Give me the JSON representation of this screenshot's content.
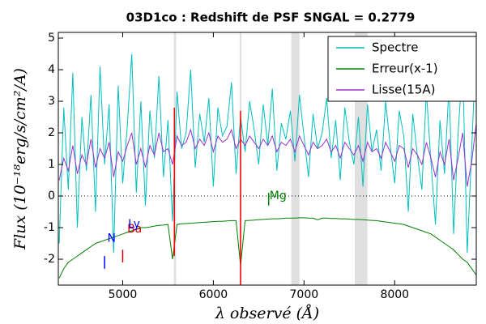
{
  "chart_data": {
    "type": "line",
    "title": "03D1co : Redshift de PSF SNGAL = 0.2779",
    "x_label": "λ observé (Å)",
    "y_label": "Flux (10⁻¹⁸erg/s/cm²/A)",
    "xlim": [
      4290,
      8900
    ],
    "ylim": [
      -2.82,
      5.18
    ],
    "xticks": [
      5000,
      6000,
      7000,
      8000
    ],
    "yticks": [
      -2,
      -1,
      0,
      1,
      2,
      3,
      4,
      5
    ],
    "legend": "upper right",
    "zero_line": true,
    "shaded_regions": [
      [
        5565,
        5590
      ],
      [
        6290,
        6310
      ],
      [
        6860,
        6950
      ],
      [
        7560,
        7700
      ]
    ],
    "x": [
      4300,
      4350,
      4400,
      4450,
      4500,
      4550,
      4600,
      4650,
      4700,
      4750,
      4800,
      4850,
      4900,
      4950,
      5000,
      5050,
      5100,
      5150,
      5200,
      5250,
      5300,
      5350,
      5400,
      5450,
      5500,
      5550,
      5600,
      5650,
      5700,
      5750,
      5800,
      5850,
      5900,
      5950,
      6000,
      6050,
      6100,
      6150,
      6200,
      6250,
      6300,
      6350,
      6400,
      6450,
      6500,
      6550,
      6600,
      6650,
      6700,
      6750,
      6800,
      6850,
      6900,
      6950,
      7000,
      7050,
      7100,
      7150,
      7200,
      7250,
      7300,
      7350,
      7400,
      7450,
      7500,
      7550,
      7600,
      7650,
      7700,
      7750,
      7800,
      7850,
      7900,
      7950,
      8000,
      8050,
      8100,
      8150,
      8200,
      8250,
      8300,
      8350,
      8400,
      8450,
      8500,
      8550,
      8600,
      8650,
      8700,
      8750,
      8800,
      8850,
      8900
    ],
    "series": [
      {
        "name": "Spectre",
        "color": "#00bfbf",
        "values": [
          -1.5,
          2.8,
          0.2,
          3.9,
          -1.0,
          2.5,
          0.8,
          3.2,
          -0.5,
          4.1,
          1.0,
          2.9,
          -1.8,
          3.5,
          0.4,
          2.2,
          4.5,
          0.1,
          3.0,
          -0.3,
          2.7,
          1.2,
          3.8,
          0.6,
          2.4,
          -0.8,
          3.3,
          1.5,
          2.0,
          4.0,
          0.9,
          2.6,
          1.7,
          3.1,
          0.3,
          2.8,
          1.9,
          2.2,
          3.6,
          0.7,
          2.5,
          1.4,
          3.0,
          2.1,
          1.0,
          2.9,
          1.6,
          3.4,
          0.8,
          2.3,
          1.8,
          2.7,
          1.1,
          3.2,
          1.9,
          0.6,
          2.6,
          1.5,
          2.0,
          3.1,
          1.2,
          2.4,
          0.5,
          2.8,
          1.7,
          1.0,
          2.5,
          0.3,
          2.9,
          1.4,
          2.1,
          0.8,
          3.0,
          1.6,
          0.4,
          2.7,
          1.9,
          -0.5,
          2.6,
          1.3,
          0.2,
          3.3,
          1.1,
          -0.9,
          2.4,
          0.7,
          3.5,
          -1.2,
          2.0,
          4.2,
          -1.8,
          1.5,
          5.0
        ]
      },
      {
        "name": "Erreur(x-1)",
        "color": "#008000",
        "values": [
          -2.6,
          -2.3,
          -2.1,
          -2.0,
          -1.9,
          -1.8,
          -1.7,
          -1.6,
          -1.5,
          -1.45,
          -1.4,
          -1.35,
          -1.3,
          -1.25,
          -1.2,
          -1.15,
          -1.1,
          -1.05,
          -1.0,
          -1.0,
          -0.98,
          -0.95,
          -0.93,
          -0.92,
          -0.9,
          -2.0,
          -0.9,
          -0.88,
          -0.87,
          -0.86,
          -0.85,
          -0.84,
          -0.83,
          -0.82,
          -0.81,
          -0.8,
          -0.8,
          -0.79,
          -0.78,
          -0.78,
          -2.2,
          -0.78,
          -0.77,
          -0.76,
          -0.75,
          -0.74,
          -0.73,
          -0.72,
          -0.72,
          -0.71,
          -0.7,
          -0.7,
          -0.7,
          -0.69,
          -0.69,
          -0.7,
          -0.7,
          -0.75,
          -0.7,
          -0.7,
          -0.71,
          -0.71,
          -0.72,
          -0.72,
          -0.73,
          -0.74,
          -0.74,
          -0.75,
          -0.76,
          -0.77,
          -0.78,
          -0.8,
          -0.82,
          -0.84,
          -0.86,
          -0.88,
          -0.9,
          -0.95,
          -1.0,
          -1.05,
          -1.1,
          -1.15,
          -1.2,
          -1.3,
          -1.4,
          -1.5,
          -1.6,
          -1.7,
          -1.85,
          -2.0,
          -2.1,
          -2.3,
          -2.5
        ]
      },
      {
        "name": "Lisse(15A)",
        "color": "#9932cc",
        "values": [
          0.5,
          1.2,
          0.8,
          1.6,
          0.7,
          1.3,
          1.0,
          1.8,
          0.9,
          1.5,
          1.2,
          1.7,
          0.6,
          1.4,
          1.1,
          1.6,
          2.0,
          1.0,
          1.5,
          0.9,
          1.6,
          1.3,
          2.0,
          1.4,
          1.5,
          1.0,
          1.9,
          1.6,
          1.7,
          2.1,
          1.5,
          1.8,
          1.6,
          2.0,
          1.4,
          1.9,
          1.7,
          1.8,
          2.1,
          1.5,
          1.8,
          1.6,
          1.9,
          1.7,
          1.5,
          1.8,
          1.6,
          1.9,
          1.4,
          1.7,
          1.6,
          1.8,
          1.4,
          1.9,
          1.6,
          1.3,
          1.7,
          1.5,
          1.6,
          1.8,
          1.4,
          1.6,
          1.2,
          1.7,
          1.5,
          1.3,
          1.6,
          1.1,
          1.7,
          1.4,
          1.5,
          1.2,
          1.7,
          1.4,
          1.1,
          1.6,
          1.5,
          0.9,
          1.5,
          1.3,
          1.0,
          1.7,
          1.2,
          0.6,
          1.4,
          1.0,
          1.8,
          0.5,
          1.2,
          2.0,
          0.3,
          1.1,
          2.3
        ]
      }
    ],
    "line_markers": [
      {
        "x": 5570,
        "y": [
          -1.9,
          2.8
        ],
        "color": "#ff0000"
      },
      {
        "x": 6300,
        "y": [
          -2.82,
          2.7
        ],
        "color": "#ff0000"
      },
      {
        "x": 4800,
        "y": [
          -2.3,
          -1.9
        ],
        "color": "#0000ff"
      },
      {
        "x": 5000,
        "y": [
          -2.1,
          -1.7
        ],
        "color": "#cc0000"
      },
      {
        "x": 6610,
        "y": [
          -0.3,
          0.1
        ],
        "color": "#008000"
      }
    ],
    "annotations": [
      {
        "text": "N",
        "x": 4830,
        "y": -1.35,
        "color": "#0000ff"
      },
      {
        "text": "Ba",
        "x": 5050,
        "y": -1.05,
        "color": "#cc0000"
      },
      {
        "text": "Ly",
        "x": 5060,
        "y": -0.9,
        "color": "#0000ff"
      },
      {
        "text": "Mg",
        "x": 6620,
        "y": 0,
        "color": "#008000"
      }
    ]
  }
}
